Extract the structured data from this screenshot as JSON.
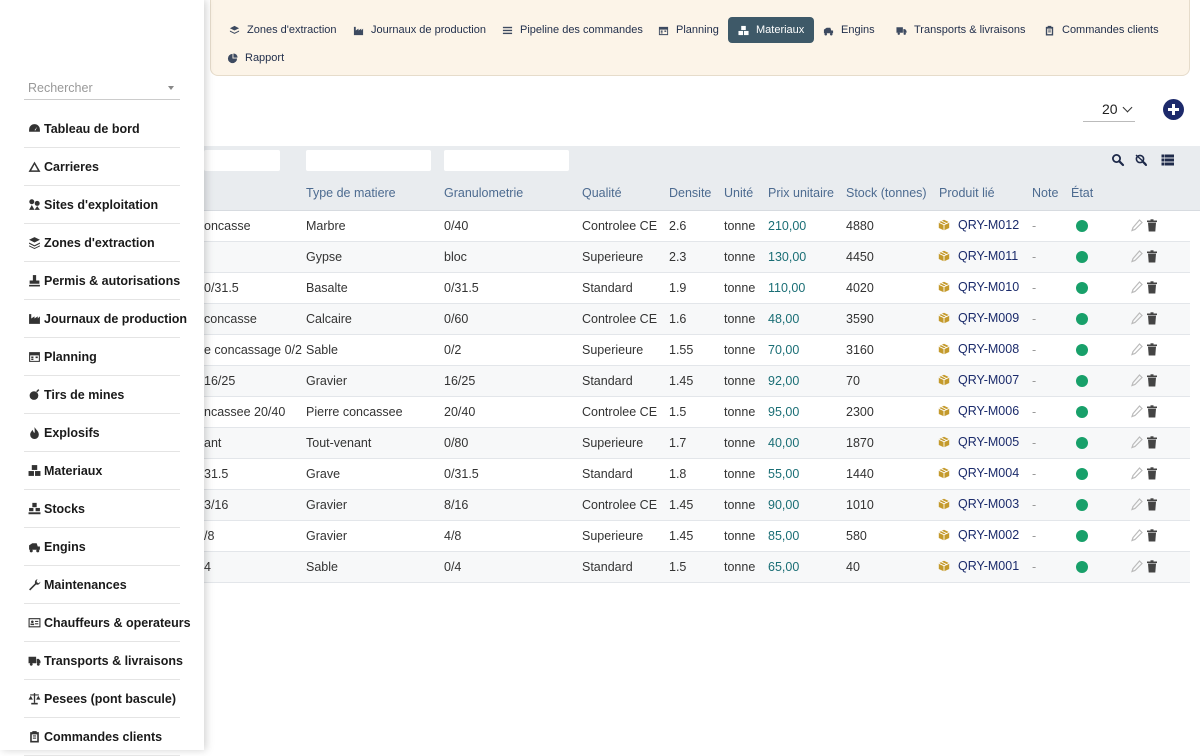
{
  "nav": {
    "items": [
      {
        "label": "Zones d'extraction",
        "icon": "layers-icon"
      },
      {
        "label": "Journaux de production",
        "icon": "industry-icon"
      },
      {
        "label": "Pipeline des commandes",
        "icon": "list-icon"
      },
      {
        "label": "Planning",
        "icon": "calendar-icon"
      },
      {
        "label": "Materiaux",
        "icon": "cubes-icon",
        "active": true
      },
      {
        "label": "Engins",
        "icon": "excavator-icon"
      },
      {
        "label": "Transports & livraisons",
        "icon": "truck-icon"
      },
      {
        "label": "Commandes clients",
        "icon": "clipboard-icon"
      },
      {
        "label": "Rapport",
        "icon": "chart-pie-icon"
      }
    ]
  },
  "toolbar": {
    "page_size": "20"
  },
  "sidebar": {
    "search_placeholder": "Rechercher",
    "items": [
      {
        "label": "Tableau de bord",
        "icon": "gauge-icon"
      },
      {
        "label": "Carrieres",
        "icon": "mountain-icon"
      },
      {
        "label": "Sites d'exploitation",
        "icon": "map-pin-icon"
      },
      {
        "label": "Zones d'extraction",
        "icon": "layers-icon"
      },
      {
        "label": "Permis & autorisations",
        "icon": "stamp-icon"
      },
      {
        "label": "Journaux de production",
        "icon": "industry-icon"
      },
      {
        "label": "Planning",
        "icon": "calendar-icon"
      },
      {
        "label": "Tirs de mines",
        "icon": "bomb-icon"
      },
      {
        "label": "Explosifs",
        "icon": "fire-icon"
      },
      {
        "label": "Materiaux",
        "icon": "cubes-icon"
      },
      {
        "label": "Stocks",
        "icon": "boxes-icon"
      },
      {
        "label": "Engins",
        "icon": "excavator-icon"
      },
      {
        "label": "Maintenances",
        "icon": "wrench-icon"
      },
      {
        "label": "Chauffeurs & operateurs",
        "icon": "id-card-icon"
      },
      {
        "label": "Transports & livraisons",
        "icon": "truck-icon"
      },
      {
        "label": "Pesees (pont bascule)",
        "icon": "balance-icon"
      },
      {
        "label": "Commandes clients",
        "icon": "clipboard-icon"
      }
    ]
  },
  "table": {
    "columns": [
      "Type de matiere",
      "Granulometrie",
      "Qualité",
      "Densite",
      "Unité",
      "Prix unitaire",
      "Stock (tonnes)",
      "Produit lié",
      "Note",
      "État"
    ],
    "rows": [
      {
        "name": "oncasse",
        "type": "Marbre",
        "granulo": "0/40",
        "qualite": "Controlee CE",
        "densite": "2.6",
        "unite": "tonne",
        "prix": "210,00",
        "stock": "4880",
        "produit": "QRY-M012",
        "note": "-"
      },
      {
        "name": "",
        "type": "Gypse",
        "granulo": "bloc",
        "qualite": "Superieure",
        "densite": "2.3",
        "unite": "tonne",
        "prix": "130,00",
        "stock": "4450",
        "produit": "QRY-M011",
        "note": "-"
      },
      {
        "name": "0/31.5",
        "type": "Basalte",
        "granulo": "0/31.5",
        "qualite": "Standard",
        "densite": "1.9",
        "unite": "tonne",
        "prix": "110,00",
        "stock": "4020",
        "produit": "QRY-M010",
        "note": "-"
      },
      {
        "name": "concasse",
        "type": "Calcaire",
        "granulo": "0/60",
        "qualite": "Controlee CE",
        "densite": "1.6",
        "unite": "tonne",
        "prix": "48,00",
        "stock": "3590",
        "produit": "QRY-M009",
        "note": "-"
      },
      {
        "name": "e concassage 0/2",
        "type": "Sable",
        "granulo": "0/2",
        "qualite": "Superieure",
        "densite": "1.55",
        "unite": "tonne",
        "prix": "70,00",
        "stock": "3160",
        "produit": "QRY-M008",
        "note": "-"
      },
      {
        "name": "16/25",
        "type": "Gravier",
        "granulo": "16/25",
        "qualite": "Standard",
        "densite": "1.45",
        "unite": "tonne",
        "prix": "92,00",
        "stock": "70",
        "produit": "QRY-M007",
        "note": "-"
      },
      {
        "name": "ncassee 20/40",
        "type": "Pierre concassee",
        "granulo": "20/40",
        "qualite": "Controlee CE",
        "densite": "1.5",
        "unite": "tonne",
        "prix": "95,00",
        "stock": "2300",
        "produit": "QRY-M006",
        "note": "-"
      },
      {
        "name": "ant",
        "type": "Tout-venant",
        "granulo": "0/80",
        "qualite": "Superieure",
        "densite": "1.7",
        "unite": "tonne",
        "prix": "40,00",
        "stock": "1870",
        "produit": "QRY-M005",
        "note": "-"
      },
      {
        "name": "31.5",
        "type": "Grave",
        "granulo": "0/31.5",
        "qualite": "Standard",
        "densite": "1.8",
        "unite": "tonne",
        "prix": "55,00",
        "stock": "1440",
        "produit": "QRY-M004",
        "note": "-"
      },
      {
        "name": "3/16",
        "type": "Gravier",
        "granulo": "8/16",
        "qualite": "Controlee CE",
        "densite": "1.45",
        "unite": "tonne",
        "prix": "90,00",
        "stock": "1010",
        "produit": "QRY-M003",
        "note": "-"
      },
      {
        "name": "/8",
        "type": "Gravier",
        "granulo": "4/8",
        "qualite": "Superieure",
        "densite": "1.45",
        "unite": "tonne",
        "prix": "85,00",
        "stock": "580",
        "produit": "QRY-M002",
        "note": "-"
      },
      {
        "name": "4",
        "type": "Sable",
        "granulo": "0/4",
        "qualite": "Standard",
        "densite": "1.5",
        "unite": "tonne",
        "prix": "65,00",
        "stock": "40",
        "produit": "QRY-M001",
        "note": "-"
      }
    ]
  },
  "colors": {
    "nav_bg": "#fcf4e8",
    "nav_active": "#3e5968",
    "link": "#1b2b6b",
    "price": "#1a6e75",
    "status_ok": "#18a06a",
    "header_text": "#4d6b90"
  }
}
